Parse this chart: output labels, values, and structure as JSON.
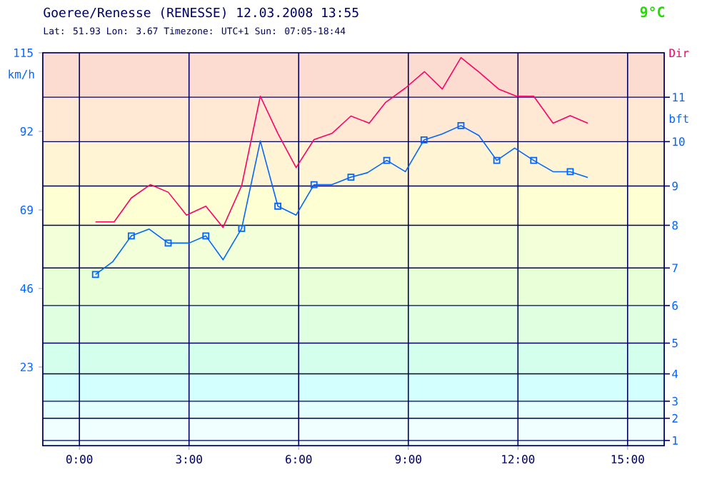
{
  "chart_data": {
    "type": "line",
    "title": "Goeree/Renesse (RENESSE) 12.03.2008 13:55",
    "subtitle": "Lat: 51.93 Lon: 3.67 Timezone: UTC+1 Sun: 07:05-18:44",
    "annotations": [
      "9°C",
      "Dir",
      "bft",
      "1",
      "2",
      "3",
      "4",
      "5",
      "6",
      "7",
      "8",
      "9",
      "10",
      "11"
    ],
    "ylabel": "km/h",
    "xlim": [
      -1,
      16
    ],
    "xticks": [
      {
        "value": 0,
        "label": "0:00"
      },
      {
        "value": 3,
        "label": "3:00"
      },
      {
        "value": 6,
        "label": "6:00"
      },
      {
        "value": 9,
        "label": "9:00"
      },
      {
        "value": 12,
        "label": "12:00"
      },
      {
        "value": 15,
        "label": "15:00"
      }
    ],
    "ylim": [
      0,
      115
    ],
    "yticks": [
      23,
      46,
      69,
      92,
      115
    ],
    "grid": "x",
    "bands": [
      {
        "axis": "y",
        "from": 0,
        "to": 8,
        "color": "#f0ffff"
      },
      {
        "axis": "y",
        "from": 8,
        "to": 13,
        "color": "#e4ffff"
      },
      {
        "axis": "y",
        "from": 13,
        "to": 21,
        "color": "#d4ffff"
      },
      {
        "axis": "y",
        "from": 21,
        "to": 30,
        "color": "#d4ffec"
      },
      {
        "axis": "y",
        "from": 30,
        "to": 41,
        "color": "#e0ffe0"
      },
      {
        "axis": "y",
        "from": 41,
        "to": 52,
        "color": "#e8ffd8"
      },
      {
        "axis": "y",
        "from": 52,
        "to": 64.5,
        "color": "#f2ffd8"
      },
      {
        "axis": "y",
        "from": 64.5,
        "to": 76,
        "color": "#ffffd4"
      },
      {
        "axis": "y",
        "from": 76,
        "to": 89,
        "color": "#fff4d4"
      },
      {
        "axis": "y",
        "from": 89,
        "to": 102,
        "color": "#ffe8d4"
      },
      {
        "axis": "y",
        "from": 102,
        "to": 115,
        "color": "#fcdcd0"
      }
    ],
    "ref_lines": [
      {
        "axis": "y",
        "value": 1.5,
        "color": "#000066"
      },
      {
        "axis": "y",
        "value": 8,
        "color": "#000066"
      },
      {
        "axis": "y",
        "value": 13,
        "color": "#000066"
      },
      {
        "axis": "y",
        "value": 21,
        "color": "#000044"
      },
      {
        "axis": "y",
        "value": 30,
        "color": "#000066"
      },
      {
        "axis": "y",
        "value": 41,
        "color": "#000066"
      },
      {
        "axis": "y",
        "value": 52,
        "color": "#000066"
      },
      {
        "axis": "y",
        "value": 64.5,
        "color": "#000066"
      },
      {
        "axis": "y",
        "value": 76,
        "color": "#000044"
      },
      {
        "axis": "y",
        "value": 89,
        "color": "#000066"
      },
      {
        "axis": "y",
        "value": 102,
        "color": "#000066"
      }
    ],
    "series": [
      {
        "color": "#ff0066",
        "x": [
          0.44,
          0.95,
          1.42,
          1.94,
          2.43,
          2.93,
          3.46,
          3.93,
          4.44,
          4.95,
          5.43,
          5.93,
          6.42,
          6.91,
          7.43,
          7.93,
          8.38,
          8.92,
          9.44,
          9.93,
          10.44,
          10.95,
          11.47,
          11.96,
          12.43,
          12.96,
          13.43,
          13.91
        ],
        "values": [
          65.5,
          65.5,
          72.5,
          76.4,
          74.2,
          67.5,
          70.1,
          63.9,
          76.1,
          102.3,
          91.4,
          81.4,
          89.6,
          91.4,
          96.5,
          94.4,
          100.5,
          104.7,
          109.5,
          104.4,
          113.6,
          109.2,
          104.4,
          102.3,
          102.3,
          94.4,
          96.6,
          94.4
        ]
      },
      {
        "color": "#0066ff",
        "x": [
          0.44,
          0.91,
          1.42,
          1.91,
          2.43,
          3.0,
          3.46,
          3.93,
          4.44,
          4.95,
          5.43,
          5.93,
          6.42,
          6.91,
          7.43,
          7.88,
          8.41,
          8.92,
          9.43,
          9.92,
          10.44,
          10.93,
          11.42,
          11.91,
          12.43,
          12.96,
          13.43,
          13.91
        ],
        "values": [
          50.1,
          53.8,
          61.4,
          63.4,
          59.3,
          59.3,
          61.4,
          54.4,
          63.6,
          89.2,
          70.1,
          67.5,
          76.4,
          76.4,
          78.6,
          79.9,
          83.5,
          80.2,
          89.5,
          91.2,
          93.7,
          90.8,
          83.5,
          87.1,
          83.5,
          80.2,
          80.2,
          78.5
        ]
      },
      {
        "type": "scatter",
        "marker": "square",
        "color": "#0066ff",
        "x": [
          0.44,
          1.42,
          2.43,
          3.46,
          4.44,
          5.43,
          6.42,
          7.43,
          8.41,
          9.43,
          10.44,
          11.42,
          12.43,
          13.43
        ],
        "values": [
          50.1,
          61.4,
          59.3,
          61.4,
          63.6,
          70.1,
          76.4,
          78.6,
          83.5,
          89.5,
          93.7,
          83.5,
          83.5,
          80.2
        ]
      }
    ]
  }
}
